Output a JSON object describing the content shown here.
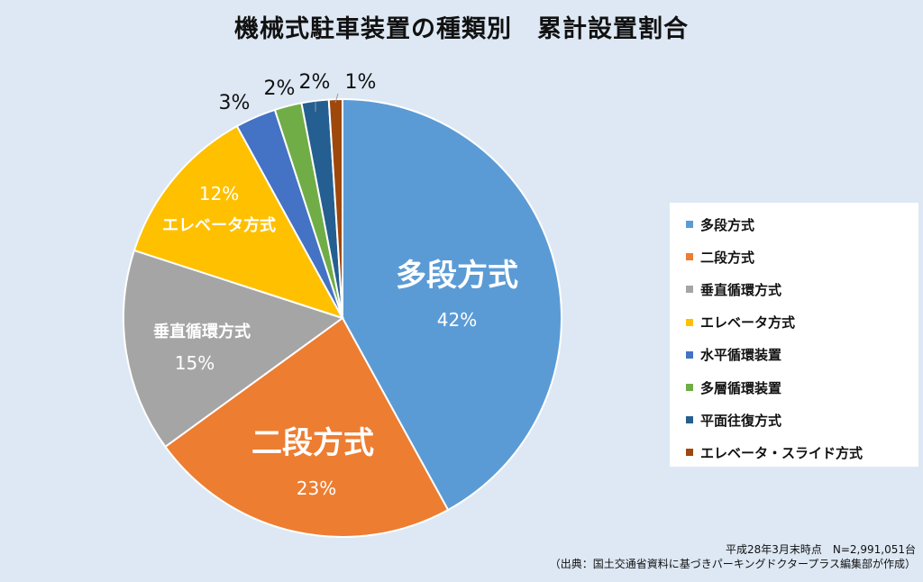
{
  "title": "機械式駐車装置の種類別　累計設置割合",
  "chart_data": {
    "type": "pie",
    "title": "機械式駐車装置の種類別　累計設置割合",
    "categories": [
      "多段方式",
      "二段方式",
      "垂直循環方式",
      "エレベータ方式",
      "水平循環装置",
      "多層循環装置",
      "平面往復方式",
      "エレベータ・スライド方式"
    ],
    "values": [
      42,
      23,
      15,
      12,
      3,
      2,
      2,
      1
    ],
    "colors": [
      "#5b9bd5",
      "#ed7d31",
      "#a5a5a5",
      "#ffc000",
      "#4472c4",
      "#70ad47",
      "#255e91",
      "#9e480e"
    ],
    "start_angle": 0,
    "direction": "clockwise",
    "legend_position": "right",
    "slice_labels": [
      {
        "name": "多段方式",
        "pct": "42%"
      },
      {
        "name": "二段方式",
        "pct": "23%"
      },
      {
        "name": "垂直循環方式",
        "pct": "15%"
      },
      {
        "name": "エレベータ方式",
        "pct": "12%"
      },
      {
        "name": "",
        "pct": "3%"
      },
      {
        "name": "",
        "pct": "2%"
      },
      {
        "name": "",
        "pct": "2%"
      },
      {
        "name": "",
        "pct": "1%"
      }
    ]
  },
  "legend": {
    "items": [
      {
        "label": "多段方式",
        "color": "#5b9bd5"
      },
      {
        "label": "二段方式",
        "color": "#ed7d31"
      },
      {
        "label": "垂直循環方式",
        "color": "#a5a5a5"
      },
      {
        "label": "エレベータ方式",
        "color": "#ffc000"
      },
      {
        "label": "水平循環装置",
        "color": "#4472c4"
      },
      {
        "label": "多層循環装置",
        "color": "#70ad47"
      },
      {
        "label": "平面往復方式",
        "color": "#255e91"
      },
      {
        "label": "エレベータ・スライド方式",
        "color": "#9e480e"
      }
    ]
  },
  "footnote": {
    "line1": "平成28年3月末時点　N=2,991,051台",
    "line2": "（出典：国土交通省資料に基づきパーキングドクタープラス編集部が作成）"
  }
}
